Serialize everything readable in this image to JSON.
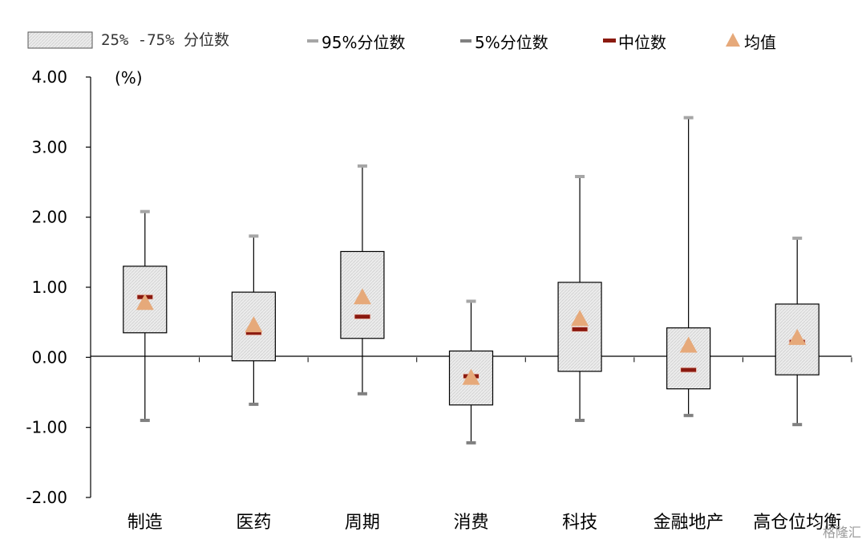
{
  "chart_data": {
    "type": "boxplot",
    "unit_label": "(%)",
    "categories": [
      "制造",
      "医药",
      "周期",
      "消费",
      "科技",
      "金融地产",
      "高仓位均衡"
    ],
    "p5": [
      -0.9,
      -0.67,
      -0.52,
      -1.22,
      -0.9,
      -0.83,
      -0.96
    ],
    "q25": [
      0.35,
      -0.05,
      0.27,
      -0.68,
      -0.2,
      -0.45,
      -0.25
    ],
    "median": [
      0.86,
      0.35,
      0.58,
      -0.27,
      0.4,
      -0.18,
      0.22
    ],
    "mean": [
      0.78,
      0.46,
      0.86,
      -0.29,
      0.55,
      0.17,
      0.28
    ],
    "q75": [
      1.3,
      0.93,
      1.51,
      0.09,
      1.07,
      0.42,
      0.76
    ],
    "p95": [
      2.08,
      1.73,
      2.73,
      0.8,
      2.58,
      3.42,
      1.7
    ],
    "ylim": [
      -2.0,
      4.0
    ],
    "yticks": [
      "4.00",
      "3.00",
      "2.00",
      "1.00",
      "0.00",
      "-1.00",
      "-2.00"
    ],
    "legend": {
      "box": "25% -75% 分位数",
      "p95": "95%分位数",
      "p5": "5%分位数",
      "median": "中位数",
      "mean": "均值"
    },
    "legend_position": "top",
    "colors": {
      "box_fill": "#e6e6e6",
      "box_stroke": "#000000",
      "p95_marker": "#a6a6a6",
      "p5_marker": "#808080",
      "median_marker": "#8b1a10",
      "mean_marker": "#e6a97a"
    }
  },
  "watermark": "格隆汇"
}
